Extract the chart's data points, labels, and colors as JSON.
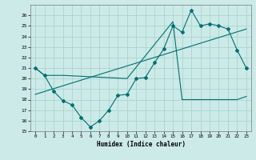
{
  "xlabel": "Humidex (Indice chaleur)",
  "background_color": "#cceae8",
  "grid_color": "#aad4d0",
  "line_color": "#007070",
  "ylim": [
    15,
    27
  ],
  "xlim": [
    -0.5,
    23.5
  ],
  "yticks": [
    15,
    16,
    17,
    18,
    19,
    20,
    21,
    22,
    23,
    24,
    25,
    26
  ],
  "xticks": [
    0,
    1,
    2,
    3,
    4,
    5,
    6,
    7,
    8,
    9,
    10,
    11,
    12,
    13,
    14,
    15,
    16,
    17,
    18,
    19,
    20,
    21,
    22,
    23
  ],
  "series1_x": [
    0,
    1,
    2,
    3,
    4,
    5,
    6,
    7,
    8,
    9,
    10,
    11,
    12,
    13,
    14,
    15,
    16,
    17,
    18,
    19,
    20,
    21,
    22,
    23
  ],
  "series1_y": [
    21.0,
    20.3,
    18.8,
    17.9,
    17.5,
    16.3,
    15.4,
    16.0,
    17.0,
    18.4,
    18.5,
    20.0,
    20.1,
    21.5,
    22.8,
    25.0,
    24.4,
    26.5,
    25.0,
    25.2,
    25.0,
    24.7,
    22.7,
    21.0
  ],
  "series2_x": [
    0,
    1,
    2,
    3,
    10,
    15,
    16,
    17,
    18,
    19,
    20,
    21,
    22,
    23
  ],
  "series2_y": [
    21.0,
    20.3,
    20.3,
    20.3,
    20.0,
    25.4,
    18.0,
    18.0,
    18.0,
    18.0,
    18.0,
    18.0,
    18.0,
    18.3
  ],
  "series3_x": [
    0,
    23
  ],
  "series3_y": [
    18.5,
    24.7
  ]
}
